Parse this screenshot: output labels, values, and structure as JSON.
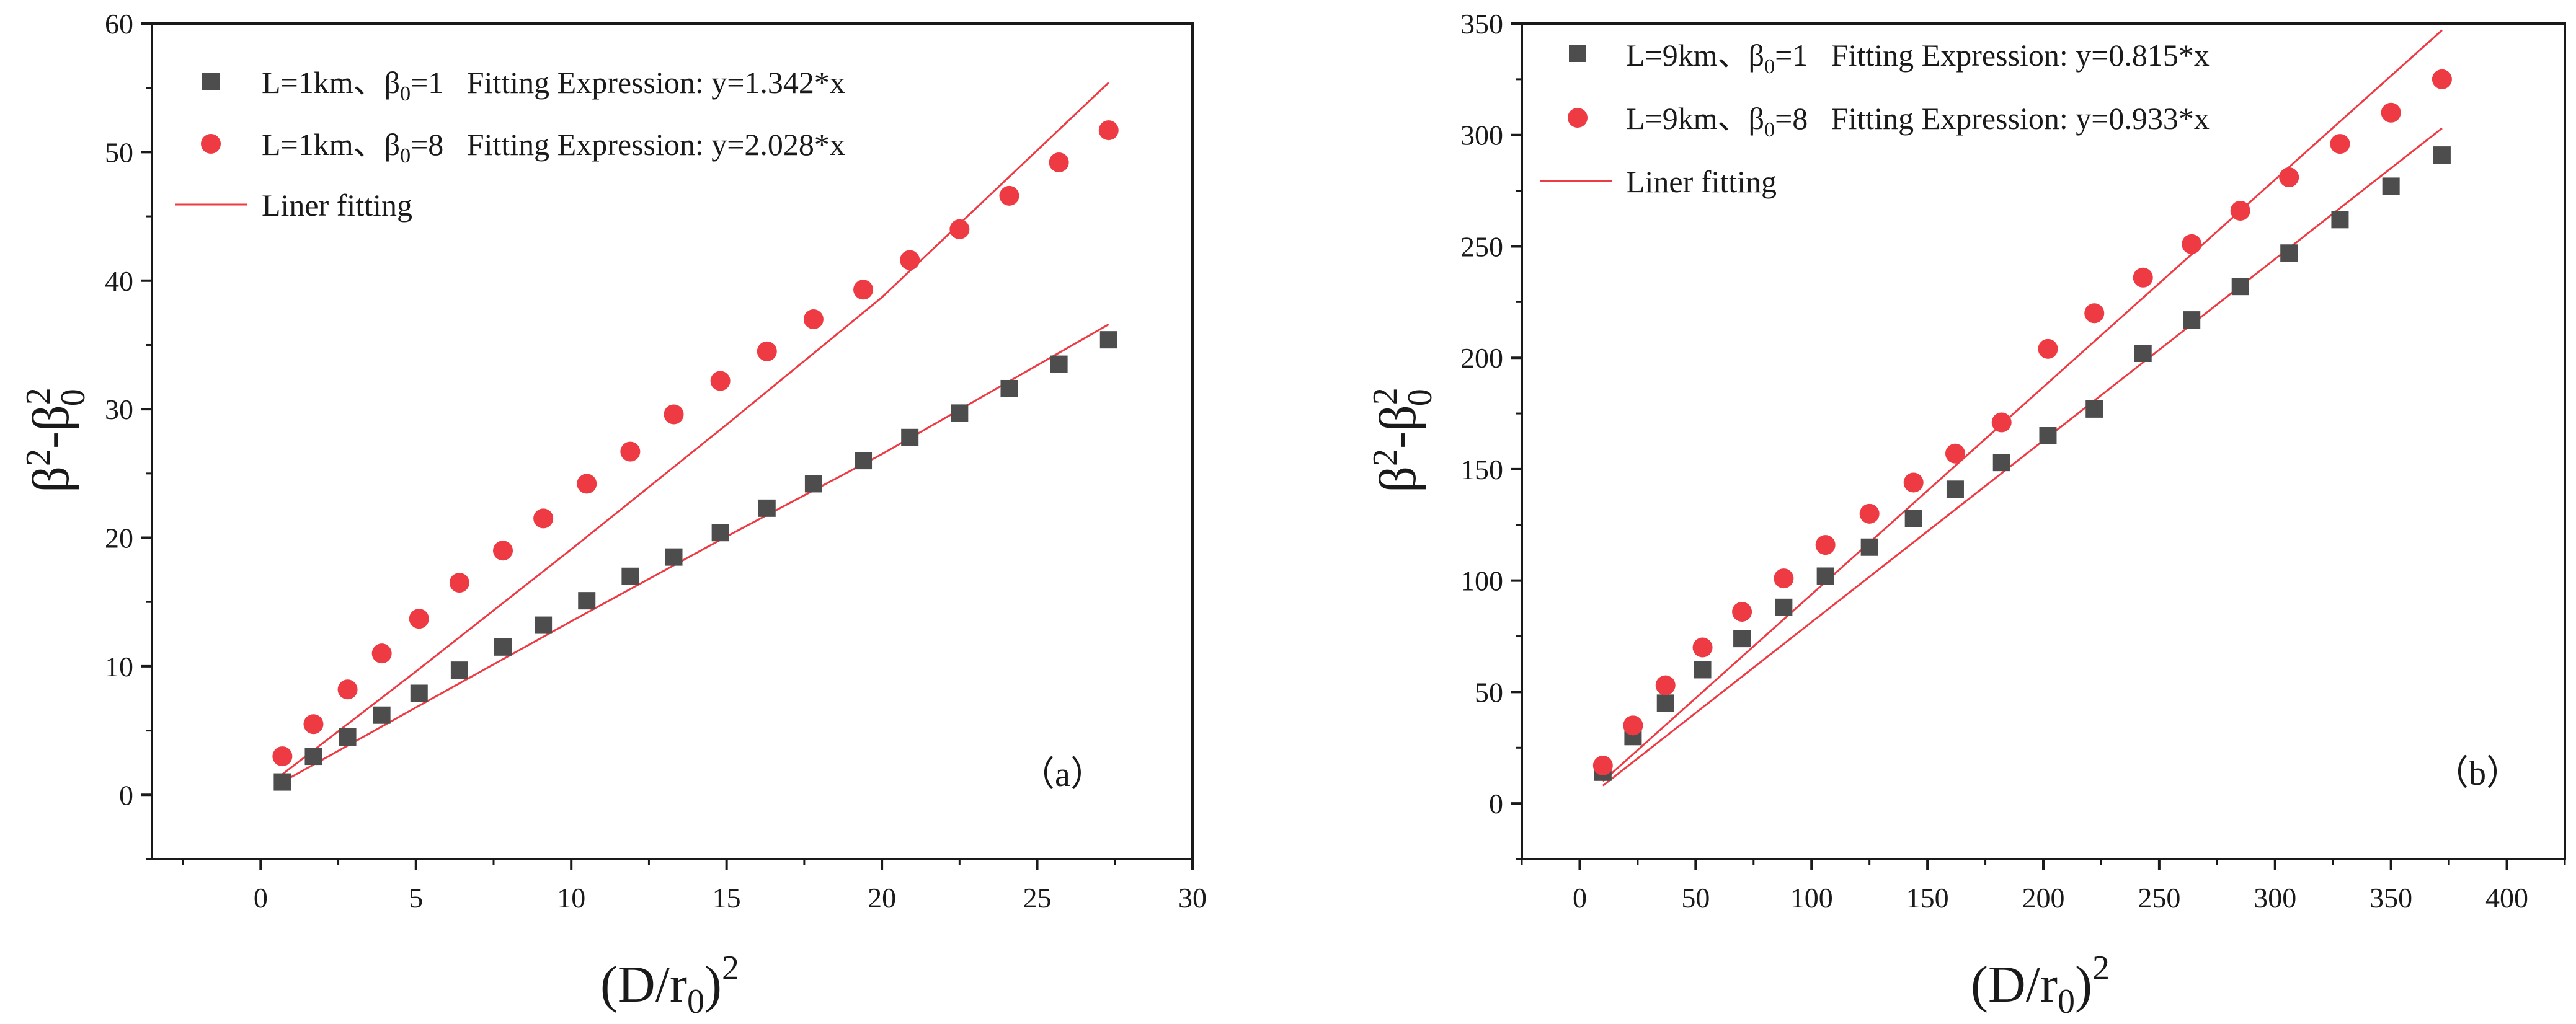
{
  "figure": {
    "colors": {
      "series_square": "#4d4d4d",
      "series_circle": "#ee3a43",
      "fit_line": "#ee3a43",
      "axis": "#1a1a1a"
    }
  },
  "chart_data": [
    {
      "type": "scatter",
      "panel_label": "（a）",
      "xlabel": "(D/r0)^2",
      "xlabel_parts": {
        "main": "(D/r",
        "sub": "0",
        "close": ")",
        "sup": "2"
      },
      "ylabel_parts": {
        "beta": "β",
        "sup1": "2",
        "minus": "-",
        "sup2": "2",
        "sub2": "0"
      },
      "xlim": [
        -3.5,
        30
      ],
      "ylim": [
        -5,
        60
      ],
      "xticks": [
        0,
        5,
        10,
        15,
        20,
        25,
        30
      ],
      "xtick_labels": [
        "0",
        "5",
        "10",
        "15",
        "20",
        "25",
        "30"
      ],
      "yticks": [
        0,
        10,
        20,
        30,
        40,
        50,
        60
      ],
      "ytick_labels": [
        "0",
        "10",
        "20",
        "30",
        "40",
        "50",
        "60"
      ],
      "legend_position": "top-left",
      "series": [
        {
          "name": "L=1km、β0=1  Fitting Expression: y=1.342*x",
          "legend_parts": {
            "pre": "L=1km、β",
            "sub": "0",
            "post": "=1   Fitting Expression: y=1.342*x"
          },
          "marker": "square",
          "x": [
            0.7,
            1.7,
            2.8,
            3.9,
            5.1,
            6.4,
            7.8,
            9.1,
            10.5,
            11.9,
            13.3,
            14.8,
            16.3,
            17.8,
            19.4,
            20.9,
            22.5,
            24.1,
            25.7,
            27.3
          ],
          "y": [
            1.0,
            3.0,
            4.5,
            6.2,
            7.9,
            9.7,
            11.5,
            13.2,
            15.1,
            17.0,
            18.5,
            20.4,
            22.3,
            24.2,
            26.0,
            27.8,
            29.7,
            31.6,
            33.5,
            35.4
          ]
        },
        {
          "name": "L=1km、β0=8  Fitting Expression: y=2.028*x",
          "legend_parts": {
            "pre": "L=1km、β",
            "sub": "0",
            "post": "=8   Fitting Expression: y=2.028*x"
          },
          "marker": "circle",
          "x": [
            0.7,
            1.7,
            2.8,
            3.9,
            5.1,
            6.4,
            7.8,
            9.1,
            10.5,
            11.9,
            13.3,
            14.8,
            16.3,
            17.8,
            19.4,
            20.9,
            22.5,
            24.1,
            25.7,
            27.3
          ],
          "y": [
            3.0,
            5.5,
            8.2,
            11.0,
            13.7,
            16.5,
            19.0,
            21.5,
            24.2,
            26.7,
            29.6,
            32.2,
            34.5,
            37.0,
            39.3,
            41.6,
            44.0,
            46.6,
            49.2,
            51.7
          ]
        }
      ],
      "fit_lines": [
        {
          "name": "Liner fitting",
          "x": [
            0.7,
            5,
            10,
            15,
            20,
            27.3
          ],
          "y": [
            1.0,
            6.8,
            13.5,
            20.1,
            26.5,
            36.6
          ]
        },
        {
          "name": "Liner fitting",
          "x": [
            0.7,
            5,
            10,
            15,
            20,
            27.3
          ],
          "y": [
            1.6,
            9.6,
            19.1,
            28.8,
            38.7,
            55.4
          ]
        }
      ],
      "legend_line_label": "Liner fitting"
    },
    {
      "type": "scatter",
      "panel_label": "（b）",
      "xlabel": "(D/r0)^2",
      "xlabel_parts": {
        "main": "(D/r",
        "sub": "0",
        "close": ")",
        "sup": "2"
      },
      "ylabel_parts": {
        "beta": "β",
        "sup1": "2",
        "minus": "-",
        "sup2": "2",
        "sub2": "0"
      },
      "xlim": [
        -25,
        425
      ],
      "ylim": [
        -25,
        350
      ],
      "xticks": [
        0,
        50,
        100,
        150,
        200,
        250,
        300,
        350,
        400
      ],
      "xtick_labels": [
        "0",
        "50",
        "100",
        "150",
        "200",
        "250",
        "300",
        "350",
        "400"
      ],
      "yticks": [
        0,
        50,
        100,
        150,
        200,
        250,
        300,
        350
      ],
      "ytick_labels": [
        "0",
        "50",
        "100",
        "150",
        "200",
        "250",
        "300",
        "350"
      ],
      "legend_position": "top-left",
      "series": [
        {
          "name": "L=9km、β0=1  Fitting Expression: y=0.815*x",
          "legend_parts": {
            "pre": "L=9km、β",
            "sub": "0",
            "post": "=1   Fitting Expression: y=0.815*x"
          },
          "marker": "square",
          "x": [
            10,
            23,
            37,
            53,
            70,
            88,
            106,
            125,
            144,
            162,
            182,
            202,
            222,
            243,
            264,
            285,
            306,
            328,
            350,
            372
          ],
          "y": [
            14,
            30,
            45,
            60,
            74,
            88,
            102,
            115,
            128,
            141,
            153,
            165,
            177,
            202,
            217,
            232,
            247,
            262,
            277,
            291
          ]
        },
        {
          "name": "L=9km、β0=8  Fitting Expression: y=0.933*x",
          "legend_parts": {
            "pre": "L=9km、β",
            "sub": "0",
            "post": "=8   Fitting Expression: y=0.933*x"
          },
          "marker": "circle",
          "x": [
            10,
            23,
            37,
            53,
            70,
            88,
            106,
            125,
            144,
            162,
            182,
            202,
            222,
            243,
            264,
            285,
            306,
            328,
            350,
            372
          ],
          "y": [
            17,
            35,
            53,
            70,
            86,
            101,
            116,
            130,
            144,
            157,
            171,
            204,
            220,
            236,
            251,
            266,
            281,
            296,
            310,
            325
          ]
        }
      ],
      "fit_lines": [
        {
          "name": "Liner fitting",
          "x": [
            10,
            372
          ],
          "y": [
            8,
            303
          ]
        },
        {
          "name": "Liner fitting",
          "x": [
            10,
            372
          ],
          "y": [
            10,
            347
          ]
        }
      ],
      "legend_line_label": "Liner fitting"
    }
  ]
}
